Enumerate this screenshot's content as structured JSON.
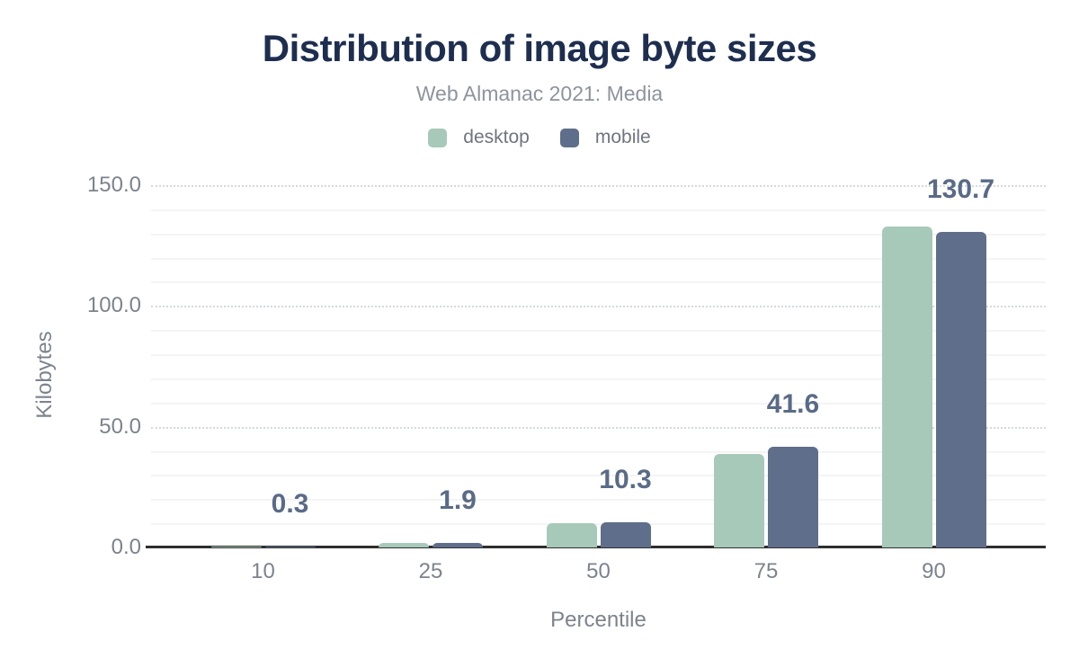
{
  "chart_data": {
    "type": "bar",
    "title": "Distribution of image byte sizes",
    "subtitle": "Web Almanac 2021: Media",
    "xlabel": "Percentile",
    "ylabel": "Kilobytes",
    "categories": [
      "10",
      "25",
      "50",
      "75",
      "90"
    ],
    "series": [
      {
        "name": "desktop",
        "color": "#a7c9ba",
        "values": [
          0.3,
          2.0,
          10.2,
          38.7,
          132.9
        ]
      },
      {
        "name": "mobile",
        "color": "#5f6e8a",
        "values": [
          0.3,
          1.9,
          10.3,
          41.6,
          130.7
        ]
      }
    ],
    "data_labels": {
      "series": "mobile",
      "values": [
        "0.3",
        "1.9",
        "10.3",
        "41.6",
        "130.7"
      ],
      "color": "#5a6b87"
    },
    "y_axis": {
      "tick_labels": [
        "0.0",
        "50.0",
        "100.0",
        "150.0"
      ],
      "tick_values": [
        0,
        50,
        100,
        150
      ],
      "ylim": [
        0,
        150
      ],
      "minor_grid_step": 10
    },
    "legend_position": "top",
    "grid": true,
    "colors": {
      "title": "#1e2e4f",
      "subtitle": "#8e939d",
      "axis_text": "#7d838d",
      "axis_line": "#2f2f2f",
      "major_gridline": "#d7d8dc",
      "minor_gridline": "#f4f4f6",
      "background": "#ffffff"
    }
  }
}
